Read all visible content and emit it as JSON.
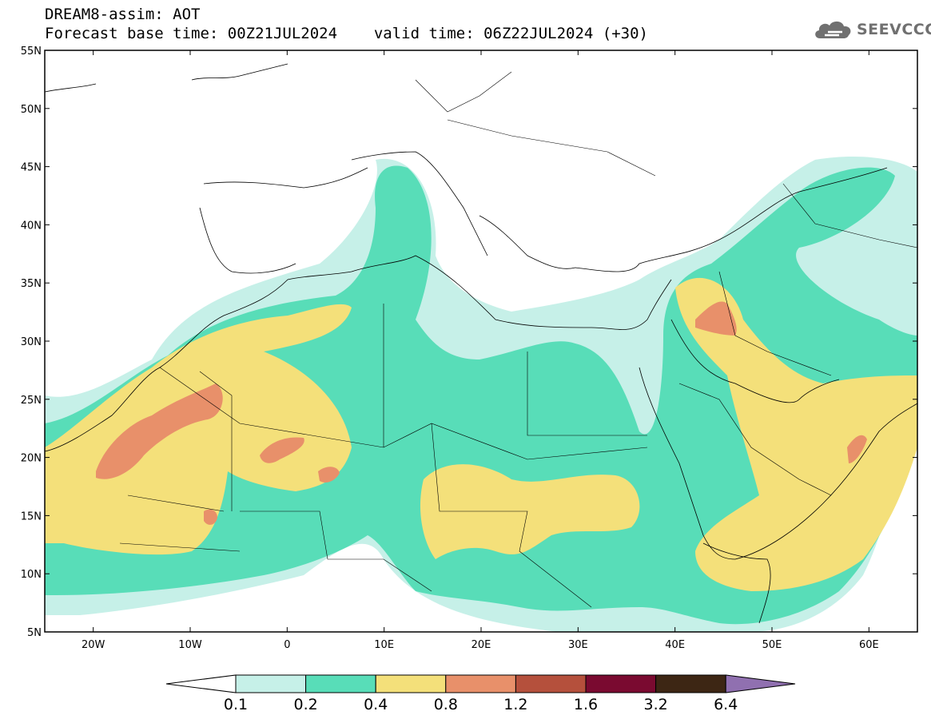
{
  "header": {
    "model_line": "DREAM8-assim: AOT",
    "base_time_label": "Forecast base time: 00Z21JUL2024",
    "valid_time_label": "valid time: 06Z22JUL2024 (+30)"
  },
  "logo": {
    "text": "SEEVCCC",
    "icon": "cloud-icon"
  },
  "map": {
    "lon_range": [
      -25,
      65
    ],
    "lat_range": [
      5,
      55
    ],
    "lon_ticks": [
      {
        "value": -20,
        "label": "20W"
      },
      {
        "value": -10,
        "label": "10W"
      },
      {
        "value": 0,
        "label": "0"
      },
      {
        "value": 10,
        "label": "10E"
      },
      {
        "value": 20,
        "label": "20E"
      },
      {
        "value": 30,
        "label": "30E"
      },
      {
        "value": 40,
        "label": "40E"
      },
      {
        "value": 50,
        "label": "50E"
      },
      {
        "value": 60,
        "label": "60E"
      }
    ],
    "lat_ticks": [
      {
        "value": 5,
        "label": "5N"
      },
      {
        "value": 10,
        "label": "10N"
      },
      {
        "value": 15,
        "label": "15N"
      },
      {
        "value": 20,
        "label": "20N"
      },
      {
        "value": 25,
        "label": "25N"
      },
      {
        "value": 30,
        "label": "30N"
      },
      {
        "value": 35,
        "label": "35N"
      },
      {
        "value": 40,
        "label": "40N"
      },
      {
        "value": 45,
        "label": "45N"
      },
      {
        "value": 50,
        "label": "50N"
      },
      {
        "value": 55,
        "label": "55N"
      }
    ]
  },
  "colorbar": {
    "colors": [
      "#c6f0e8",
      "#58ddb8",
      "#f4e07a",
      "#e8906a",
      "#b5503c",
      "#7a0a30",
      "#3d2614"
    ],
    "under_color": "#ffffff",
    "over_color": "#9070b0",
    "labels": [
      "0.1",
      "0.2",
      "0.4",
      "0.8",
      "1.2",
      "1.6",
      "3.2",
      "6.4"
    ]
  }
}
